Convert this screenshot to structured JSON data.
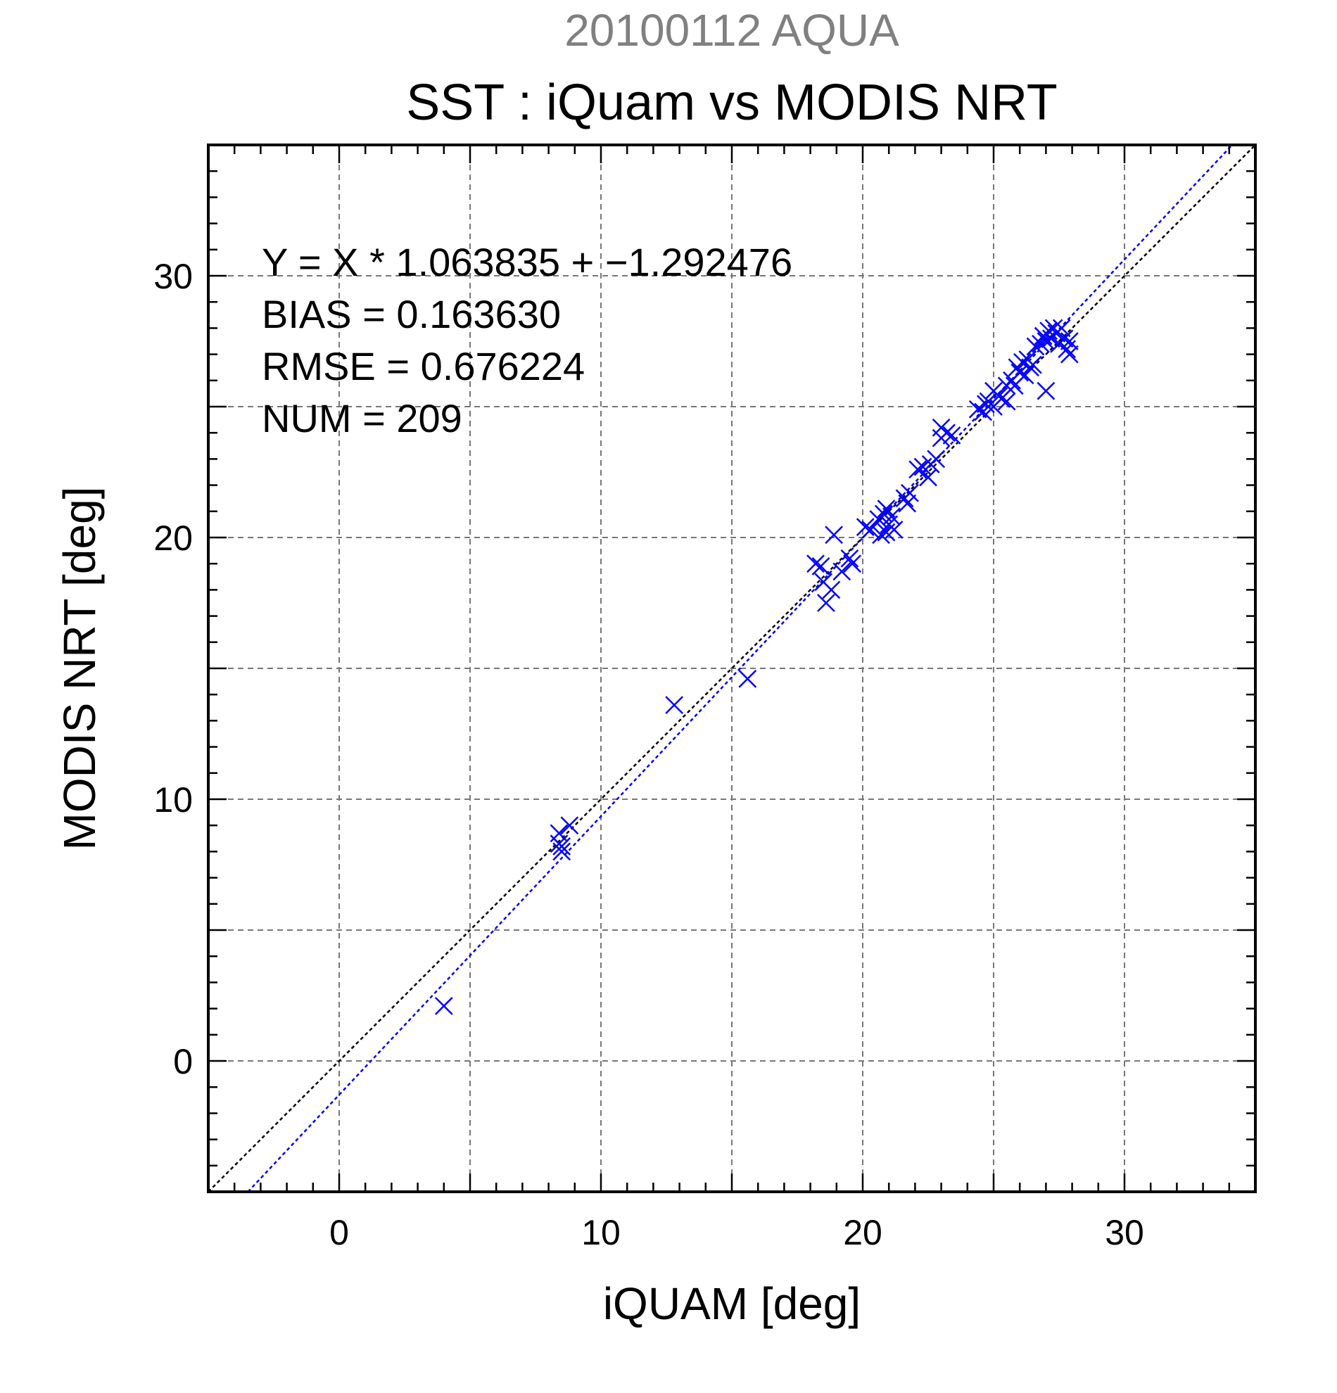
{
  "chart_data": {
    "type": "scatter",
    "supertitle": "20100112 AQUA",
    "title": "SST : iQuam vs MODIS NRT",
    "xlabel": "iQUAM [deg]",
    "ylabel": "MODIS NRT [deg]",
    "xlim": [
      -5,
      35
    ],
    "ylim": [
      -5,
      35
    ],
    "xticks": [
      0,
      10,
      20,
      30
    ],
    "yticks": [
      0,
      10,
      20,
      30
    ],
    "grid": true,
    "marker": "x",
    "marker_color": "#0000ff",
    "reference_line_color": "#000000",
    "fit_line_color": "#0000ff",
    "fit": {
      "slope": 1.063835,
      "intercept": -1.292476
    },
    "stats": [
      "Y = X * 1.063835 + −1.292476",
      "BIAS = 0.163630",
      "RMSE = 0.676224",
      "NUM = 209"
    ],
    "points": [
      [
        4.0,
        2.1
      ],
      [
        8.4,
        8.3
      ],
      [
        8.5,
        8.0
      ],
      [
        8.4,
        8.7
      ],
      [
        8.8,
        9.0
      ],
      [
        8.5,
        8.2
      ],
      [
        12.8,
        13.6
      ],
      [
        15.6,
        14.6
      ],
      [
        18.2,
        19.0
      ],
      [
        18.4,
        18.9
      ],
      [
        18.5,
        18.3
      ],
      [
        18.6,
        17.5
      ],
      [
        18.8,
        18.0
      ],
      [
        18.9,
        20.1
      ],
      [
        19.2,
        18.7
      ],
      [
        19.5,
        19.2
      ],
      [
        19.6,
        19.0
      ],
      [
        20.1,
        20.4
      ],
      [
        20.3,
        20.3
      ],
      [
        20.6,
        20.7
      ],
      [
        20.7,
        20.1
      ],
      [
        20.8,
        20.9
      ],
      [
        20.9,
        20.2
      ],
      [
        20.9,
        21.1
      ],
      [
        21.0,
        20.5
      ],
      [
        21.1,
        20.8
      ],
      [
        21.2,
        20.3
      ],
      [
        21.6,
        21.5
      ],
      [
        21.8,
        21.7
      ],
      [
        21.7,
        21.3
      ],
      [
        22.1,
        22.6
      ],
      [
        22.3,
        22.7
      ],
      [
        22.5,
        22.3
      ],
      [
        22.6,
        22.8
      ],
      [
        22.8,
        23.0
      ],
      [
        23.0,
        23.8
      ],
      [
        23.2,
        24.0
      ],
      [
        23.0,
        24.2
      ],
      [
        23.4,
        23.9
      ],
      [
        24.4,
        24.9
      ],
      [
        24.6,
        24.8
      ],
      [
        24.7,
        25.1
      ],
      [
        24.8,
        25.2
      ],
      [
        25.0,
        25.0
      ],
      [
        25.0,
        25.6
      ],
      [
        25.2,
        25.4
      ],
      [
        25.3,
        25.3
      ],
      [
        25.5,
        25.8
      ],
      [
        25.5,
        25.2
      ],
      [
        25.7,
        26.0
      ],
      [
        25.8,
        25.8
      ],
      [
        25.9,
        26.5
      ],
      [
        26.0,
        26.3
      ],
      [
        26.1,
        26.7
      ],
      [
        26.2,
        26.2
      ],
      [
        26.3,
        26.8
      ],
      [
        26.4,
        26.5
      ],
      [
        26.5,
        26.6
      ],
      [
        26.6,
        27.3
      ],
      [
        26.8,
        27.4
      ],
      [
        26.9,
        27.7
      ],
      [
        27.0,
        27.5
      ],
      [
        27.0,
        25.6
      ],
      [
        27.1,
        27.9
      ],
      [
        27.2,
        27.6
      ],
      [
        27.3,
        28.0
      ],
      [
        27.4,
        27.8
      ],
      [
        27.5,
        27.4
      ],
      [
        27.6,
        28.0
      ],
      [
        27.7,
        27.6
      ],
      [
        27.8,
        27.2
      ],
      [
        27.9,
        27.5
      ],
      [
        27.9,
        27.0
      ]
    ]
  }
}
